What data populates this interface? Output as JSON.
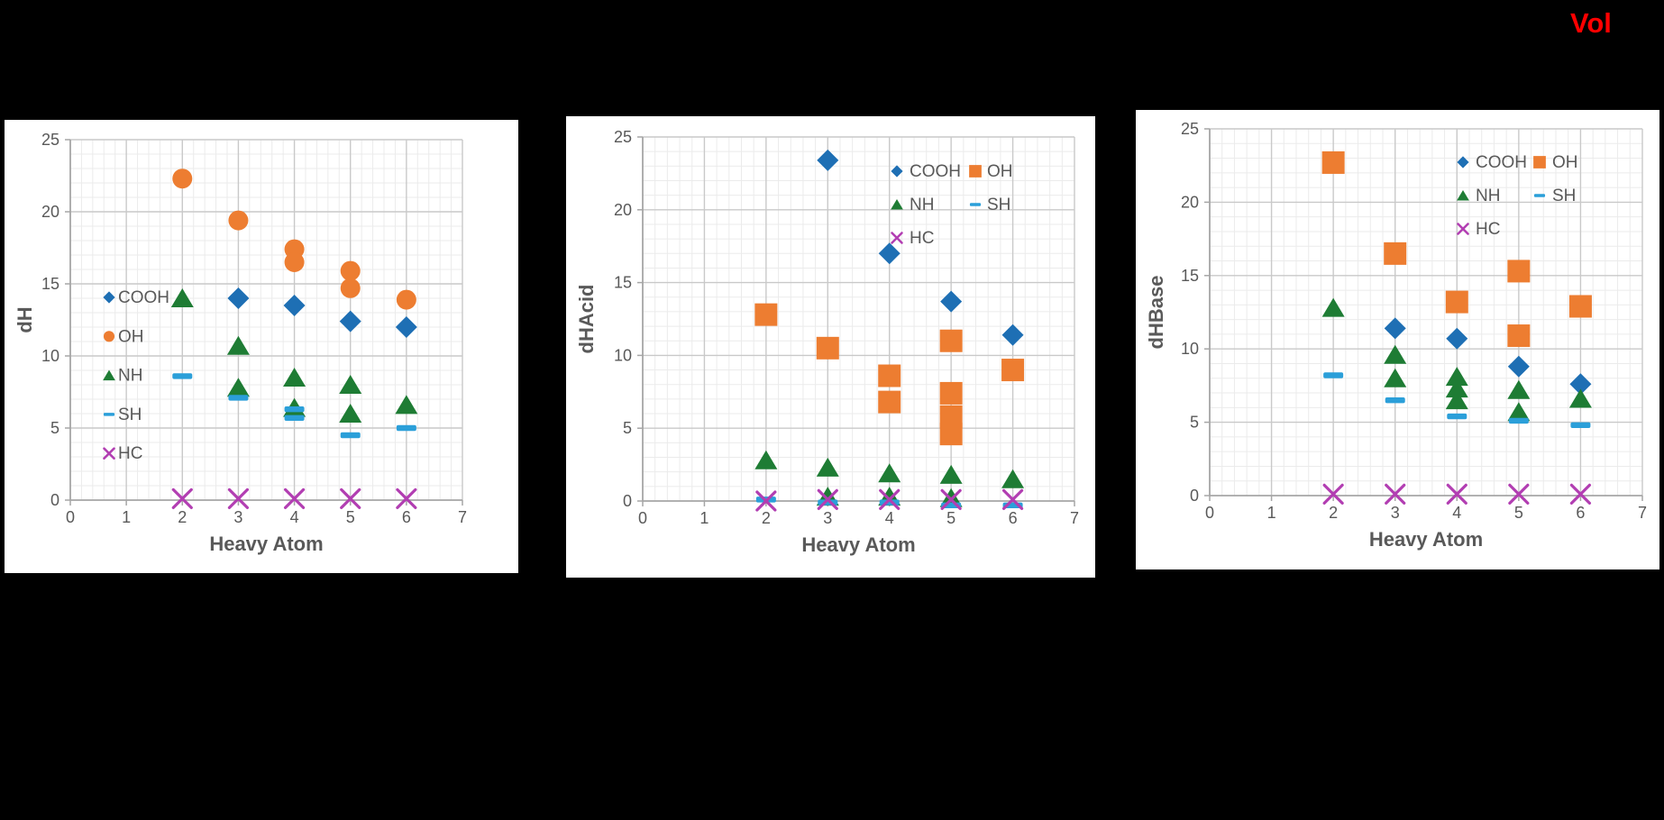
{
  "page": {
    "background": "#000000",
    "vol_label": "Vol",
    "vol_color": "#FF0000"
  },
  "colors": {
    "blue": "#1E6FB4",
    "orange": "#ED7D31",
    "green": "#1E7C34",
    "lightblue": "#2B9FD9",
    "magenta": "#B23EB2",
    "text": "#595959",
    "axis": "#A6A6A6",
    "grid_major": "#C9C9C9",
    "grid_minor": "#EBEBEB"
  },
  "chart_data": [
    {
      "type": "scatter",
      "ylabel": "dH",
      "xlabel": "Heavy Atom",
      "xlim": [
        0,
        7
      ],
      "ylim": [
        0,
        25
      ],
      "x_ticks": [
        0,
        1,
        2,
        3,
        4,
        5,
        6,
        7
      ],
      "y_ticks": [
        0,
        5,
        10,
        15,
        20,
        25
      ],
      "x_minor_step": 0.2,
      "y_minor_step": 1,
      "grid": true,
      "legend_position": "inside-left",
      "legend_labels": [
        "COOH",
        "OH",
        "NH",
        "SH",
        "HC"
      ],
      "series": [
        {
          "name": "COOH",
          "marker": "diamond",
          "color": "blue",
          "points": [
            [
              3,
              14.0
            ],
            [
              4,
              13.5
            ],
            [
              5,
              12.4
            ],
            [
              6,
              12.0
            ]
          ]
        },
        {
          "name": "OH",
          "marker": "circle",
          "color": "orange",
          "points": [
            [
              2,
              22.3
            ],
            [
              3,
              19.4
            ],
            [
              4,
              17.4
            ],
            [
              4,
              16.5
            ],
            [
              5,
              15.9
            ],
            [
              5,
              14.7
            ],
            [
              6,
              13.9
            ]
          ]
        },
        {
          "name": "NH",
          "marker": "triangle",
          "color": "green",
          "points": [
            [
              2,
              14.0
            ],
            [
              3,
              10.7
            ],
            [
              3,
              7.8
            ],
            [
              4,
              8.5
            ],
            [
              4,
              6.4
            ],
            [
              5,
              8.0
            ],
            [
              5,
              6.0
            ],
            [
              6,
              6.6
            ]
          ]
        },
        {
          "name": "SH",
          "marker": "dash",
          "color": "lightblue",
          "points": [
            [
              2,
              8.6
            ],
            [
              3,
              7.1
            ],
            [
              4,
              6.3
            ],
            [
              4,
              5.7
            ],
            [
              5,
              4.5
            ],
            [
              6,
              5.0
            ]
          ]
        },
        {
          "name": "HC",
          "marker": "x",
          "color": "magenta",
          "points": [
            [
              2,
              0.1
            ],
            [
              3,
              0.1
            ],
            [
              4,
              0.1
            ],
            [
              5,
              0.1
            ],
            [
              6,
              0.1
            ]
          ]
        }
      ]
    },
    {
      "type": "scatter",
      "ylabel": "dHAcid",
      "xlabel": "Heavy Atom",
      "xlim": [
        0,
        7
      ],
      "ylim": [
        0,
        25
      ],
      "x_ticks": [
        0,
        1,
        2,
        3,
        4,
        5,
        6,
        7
      ],
      "y_ticks": [
        0,
        5,
        10,
        15,
        20,
        25
      ],
      "x_minor_step": 0.2,
      "y_minor_step": 1,
      "grid": true,
      "legend_position": "inside-upper-right",
      "legend_labels": [
        "COOH",
        "OH",
        "NH",
        "SH",
        "HC"
      ],
      "series": [
        {
          "name": "COOH",
          "marker": "diamond",
          "color": "blue",
          "points": [
            [
              3,
              23.4
            ],
            [
              4,
              17.0
            ],
            [
              5,
              13.7
            ],
            [
              6,
              11.4
            ]
          ]
        },
        {
          "name": "OH",
          "marker": "square",
          "color": "orange",
          "points": [
            [
              2,
              12.8
            ],
            [
              3,
              10.5
            ],
            [
              4,
              8.6
            ],
            [
              4,
              6.8
            ],
            [
              5,
              11.0
            ],
            [
              5,
              7.4
            ],
            [
              5,
              5.8
            ],
            [
              5,
              4.6
            ],
            [
              6,
              9.0
            ]
          ]
        },
        {
          "name": "NH",
          "marker": "triangle",
          "color": "green",
          "points": [
            [
              2,
              2.8
            ],
            [
              3,
              2.3
            ],
            [
              3,
              0.3
            ],
            [
              4,
              1.9
            ],
            [
              4,
              0.3
            ],
            [
              5,
              1.8
            ],
            [
              5,
              0.2
            ],
            [
              6,
              1.5
            ]
          ]
        },
        {
          "name": "SH",
          "marker": "dash",
          "color": "lightblue",
          "points": [
            [
              2,
              0.1
            ],
            [
              3,
              -0.1
            ],
            [
              4,
              -0.1
            ],
            [
              5,
              -0.3
            ],
            [
              6,
              -0.3
            ]
          ]
        },
        {
          "name": "HC",
          "marker": "x",
          "color": "magenta",
          "points": [
            [
              2,
              0.0
            ],
            [
              3,
              0.1
            ],
            [
              4,
              0.1
            ],
            [
              5,
              0.1
            ],
            [
              6,
              0.1
            ]
          ]
        }
      ]
    },
    {
      "type": "scatter",
      "ylabel": "dHBase",
      "xlabel": "Heavy Atom",
      "xlim": [
        0,
        7
      ],
      "ylim": [
        0,
        25
      ],
      "x_ticks": [
        0,
        1,
        2,
        3,
        4,
        5,
        6,
        7
      ],
      "y_ticks": [
        0,
        5,
        10,
        15,
        20,
        25
      ],
      "x_minor_step": 0.2,
      "y_minor_step": 1,
      "grid": true,
      "legend_position": "inside-upper-right",
      "legend_labels": [
        "COOH",
        "OH",
        "NH",
        "SH",
        "HC"
      ],
      "series": [
        {
          "name": "COOH",
          "marker": "diamond",
          "color": "blue",
          "points": [
            [
              3,
              11.4
            ],
            [
              4,
              10.7
            ],
            [
              5,
              8.8
            ],
            [
              6,
              7.6
            ]
          ]
        },
        {
          "name": "OH",
          "marker": "square",
          "color": "orange",
          "points": [
            [
              2,
              22.7
            ],
            [
              3,
              16.5
            ],
            [
              4,
              13.2
            ],
            [
              5,
              15.3
            ],
            [
              5,
              10.9
            ],
            [
              6,
              12.9
            ]
          ]
        },
        {
          "name": "NH",
          "marker": "triangle",
          "color": "green",
          "points": [
            [
              2,
              12.8
            ],
            [
              3,
              9.6
            ],
            [
              3,
              8.0
            ],
            [
              4,
              8.1
            ],
            [
              4,
              7.3
            ],
            [
              4,
              6.5
            ],
            [
              5,
              7.2
            ],
            [
              5,
              5.7
            ],
            [
              6,
              6.6
            ]
          ]
        },
        {
          "name": "SH",
          "marker": "dash",
          "color": "lightblue",
          "points": [
            [
              2,
              8.2
            ],
            [
              3,
              6.5
            ],
            [
              4,
              5.4
            ],
            [
              5,
              5.1
            ],
            [
              6,
              4.8
            ]
          ]
        },
        {
          "name": "HC",
          "marker": "x",
          "color": "magenta",
          "points": [
            [
              2,
              0.1
            ],
            [
              3,
              0.1
            ],
            [
              4,
              0.1
            ],
            [
              5,
              0.1
            ],
            [
              6,
              0.1
            ]
          ]
        }
      ]
    }
  ]
}
